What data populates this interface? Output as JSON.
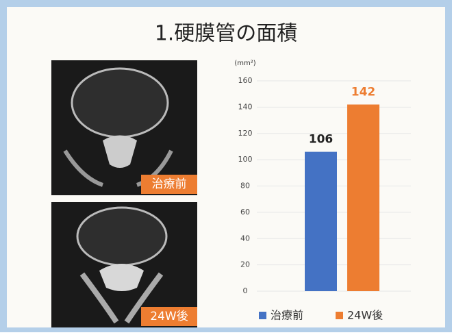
{
  "chart_data": {
    "type": "bar",
    "title": "1.硬膜管の面積",
    "y_unit": "(mm²)",
    "categories": [
      null
    ],
    "series": [
      {
        "name": "治療前",
        "color": "#4472c4",
        "label_color": "#222222",
        "values": [
          106
        ]
      },
      {
        "name": "24W後",
        "color": "#ed7d31",
        "label_color": "#ed7d31",
        "values": [
          142
        ]
      }
    ],
    "ylim": [
      0,
      160
    ],
    "yticks": [
      0,
      20,
      40,
      60,
      80,
      100,
      120,
      140,
      160
    ],
    "grid": true
  },
  "images": [
    {
      "label": "治療前"
    },
    {
      "label": "24W後"
    }
  ]
}
